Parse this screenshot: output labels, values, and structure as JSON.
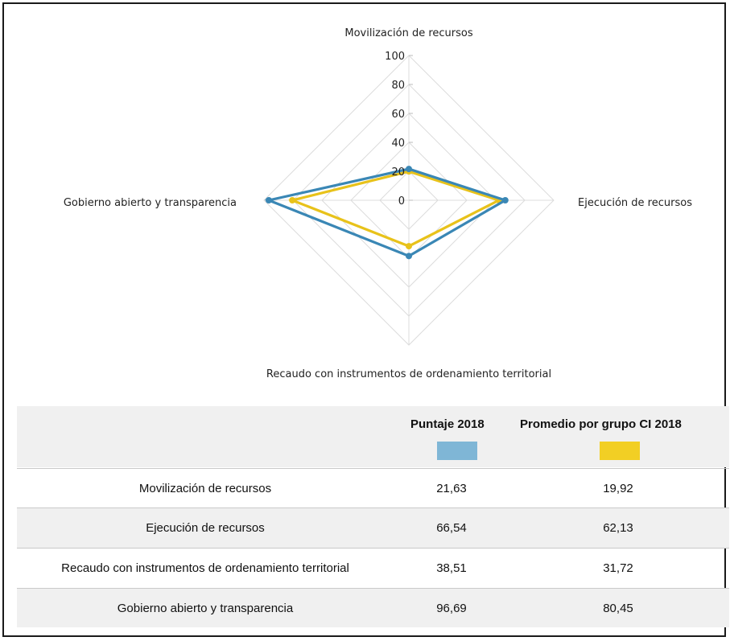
{
  "chart_data": {
    "type": "radar",
    "axes": [
      "Movilización de recursos",
      "Ejecución de recursos",
      "Recaudo con instrumentos de ordenamiento territorial",
      "Gobierno abierto y transparencia"
    ],
    "ticks": [
      "100",
      "80",
      "60",
      "40",
      "20",
      "0"
    ],
    "range": [
      0,
      100
    ],
    "series": [
      {
        "name": "Puntaje 2018",
        "values": [
          21.63,
          66.54,
          38.51,
          96.69
        ],
        "color": "#3a87b5"
      },
      {
        "name": "Promedio por grupo CI 2018",
        "values": [
          19.92,
          62.13,
          31.72,
          80.45
        ],
        "color": "#e8c21a"
      }
    ]
  },
  "table": {
    "headers": {
      "col1": "Puntaje 2018",
      "col2": "Promedio por grupo CI 2018"
    },
    "swatch_colors": {
      "col1": "#7fb6d6",
      "col2": "#f2cf24"
    },
    "rows": [
      {
        "label": "Movilización de recursos",
        "v1": "21,63",
        "v2": "19,92"
      },
      {
        "label": "Ejecución de recursos",
        "v1": "66,54",
        "v2": "62,13"
      },
      {
        "label": "Recaudo con instrumentos de ordenamiento territorial",
        "v1": "38,51",
        "v2": "31,72"
      },
      {
        "label": "Gobierno abierto y transparencia",
        "v1": "96,69",
        "v2": "80,45"
      }
    ]
  }
}
